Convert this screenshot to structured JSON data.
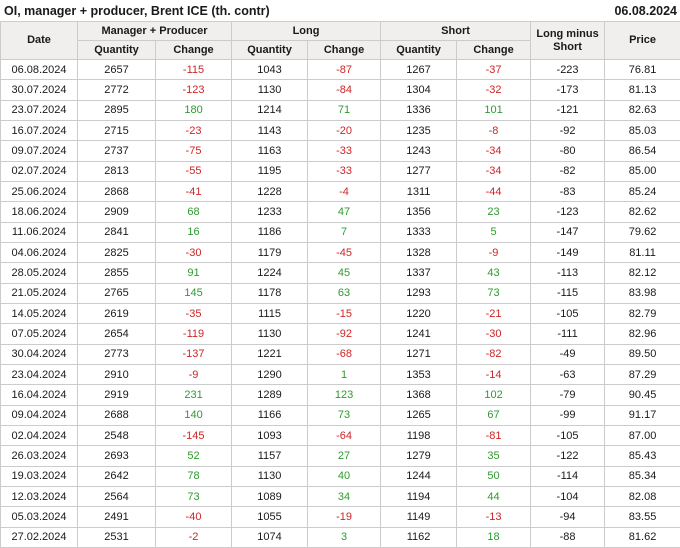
{
  "header": {
    "title": "OI, manager + producer, Brent ICE (th. contr)",
    "report_date": "06.08.2024"
  },
  "colors": {
    "positive": "#2e9b2e",
    "negative": "#cc2626",
    "header_bg": "#f0efee",
    "border": "#cccccc",
    "text": "#1a1a1a"
  },
  "table": {
    "group_headers": {
      "date": "Date",
      "manager_producer": "Manager + Producer",
      "long": "Long",
      "short": "Short",
      "long_minus_short": "Long minus Short",
      "price": "Price"
    },
    "sub_headers": {
      "quantity": "Quantity",
      "change": "Change"
    }
  },
  "chart_data": {
    "type": "table",
    "title": "OI, manager + producer, Brent ICE (th. contr)",
    "report_date": "06.08.2024",
    "columns": [
      "Date",
      "Manager + Producer Quantity",
      "Manager + Producer Change",
      "Long Quantity",
      "Long Change",
      "Short Quantity",
      "Short Change",
      "Long minus Short",
      "Price"
    ],
    "rows": [
      [
        "06.08.2024",
        "2657",
        "-115",
        "1043",
        "-87",
        "1267",
        "-37",
        "-223",
        "76.81"
      ],
      [
        "30.07.2024",
        "2772",
        "-123",
        "1130",
        "-84",
        "1304",
        "-32",
        "-173",
        "81.13"
      ],
      [
        "23.07.2024",
        "2895",
        "180",
        "1214",
        "71",
        "1336",
        "101",
        "-121",
        "82.63"
      ],
      [
        "16.07.2024",
        "2715",
        "-23",
        "1143",
        "-20",
        "1235",
        "-8",
        "-92",
        "85.03"
      ],
      [
        "09.07.2024",
        "2737",
        "-75",
        "1163",
        "-33",
        "1243",
        "-34",
        "-80",
        "86.54"
      ],
      [
        "02.07.2024",
        "2813",
        "-55",
        "1195",
        "-33",
        "1277",
        "-34",
        "-82",
        "85.00"
      ],
      [
        "25.06.2024",
        "2868",
        "-41",
        "1228",
        "-4",
        "1311",
        "-44",
        "-83",
        "85.24"
      ],
      [
        "18.06.2024",
        "2909",
        "68",
        "1233",
        "47",
        "1356",
        "23",
        "-123",
        "82.62"
      ],
      [
        "11.06.2024",
        "2841",
        "16",
        "1186",
        "7",
        "1333",
        "5",
        "-147",
        "79.62"
      ],
      [
        "04.06.2024",
        "2825",
        "-30",
        "1179",
        "-45",
        "1328",
        "-9",
        "-149",
        "81.11"
      ],
      [
        "28.05.2024",
        "2855",
        "91",
        "1224",
        "45",
        "1337",
        "43",
        "-113",
        "82.12"
      ],
      [
        "21.05.2024",
        "2765",
        "145",
        "1178",
        "63",
        "1293",
        "73",
        "-115",
        "83.98"
      ],
      [
        "14.05.2024",
        "2619",
        "-35",
        "1115",
        "-15",
        "1220",
        "-21",
        "-105",
        "82.79"
      ],
      [
        "07.05.2024",
        "2654",
        "-119",
        "1130",
        "-92",
        "1241",
        "-30",
        "-111",
        "82.96"
      ],
      [
        "30.04.2024",
        "2773",
        "-137",
        "1221",
        "-68",
        "1271",
        "-82",
        "-49",
        "89.50"
      ],
      [
        "23.04.2024",
        "2910",
        "-9",
        "1290",
        "1",
        "1353",
        "-14",
        "-63",
        "87.29"
      ],
      [
        "16.04.2024",
        "2919",
        "231",
        "1289",
        "123",
        "1368",
        "102",
        "-79",
        "90.45"
      ],
      [
        "09.04.2024",
        "2688",
        "140",
        "1166",
        "73",
        "1265",
        "67",
        "-99",
        "91.17"
      ],
      [
        "02.04.2024",
        "2548",
        "-145",
        "1093",
        "-64",
        "1198",
        "-81",
        "-105",
        "87.00"
      ],
      [
        "26.03.2024",
        "2693",
        "52",
        "1157",
        "27",
        "1279",
        "35",
        "-122",
        "85.43"
      ],
      [
        "19.03.2024",
        "2642",
        "78",
        "1130",
        "40",
        "1244",
        "50",
        "-114",
        "85.34"
      ],
      [
        "12.03.2024",
        "2564",
        "73",
        "1089",
        "34",
        "1194",
        "44",
        "-104",
        "82.08"
      ],
      [
        "05.03.2024",
        "2491",
        "-40",
        "1055",
        "-19",
        "1149",
        "-13",
        "-94",
        "83.55"
      ],
      [
        "27.02.2024",
        "2531",
        "-2",
        "1074",
        "3",
        "1162",
        "18",
        "-88",
        "81.62"
      ]
    ]
  }
}
